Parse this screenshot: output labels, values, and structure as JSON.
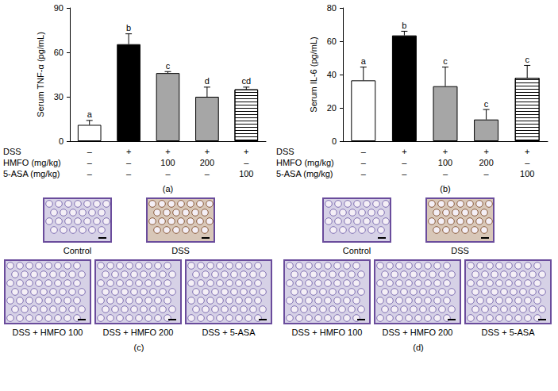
{
  "chart_data": [
    {
      "type": "bar",
      "panel_label": "(a)",
      "y_label": "Serum TNF-α (pg/mL)",
      "x_table": [
        {
          "label": "DSS",
          "cells": [
            "–",
            "+",
            "+",
            "+",
            "+"
          ]
        },
        {
          "label": "HMFO (mg/kg)",
          "cells": [
            "–",
            "–",
            "100",
            "200",
            "–"
          ]
        },
        {
          "label": "5-ASA (mg/kg)",
          "cells": [
            "–",
            "–",
            "–",
            "–",
            "100"
          ]
        }
      ],
      "values": [
        11,
        65.5,
        46,
        30,
        35
      ],
      "errors": [
        3,
        7,
        1,
        6.5,
        1.5
      ],
      "letters": [
        "a",
        "b",
        "c",
        "d",
        "cd"
      ],
      "colors": [
        "#ffffff",
        "#000000",
        "#a6a6a6",
        "#a6a6a6",
        "#ffffff"
      ],
      "ylim": [
        0,
        90
      ],
      "yticks": [
        0,
        30,
        60,
        90
      ],
      "grid": false
    },
    {
      "type": "bar",
      "panel_label": "(b)",
      "y_label": "Serum IL-6 (pg/mL)",
      "x_table": [
        {
          "label": "DSS",
          "cells": [
            "–",
            "+",
            "+",
            "+",
            "+"
          ]
        },
        {
          "label": "HMFO (mg/kg)",
          "cells": [
            "–",
            "–",
            "100",
            "200",
            "–"
          ]
        },
        {
          "label": "5-ASA (mg/kg)",
          "cells": [
            "–",
            "–",
            "–",
            "–",
            "100"
          ]
        }
      ],
      "values": [
        36.5,
        63.5,
        33,
        13,
        38
      ],
      "errors": [
        8,
        2.5,
        11.5,
        6,
        7.5
      ],
      "letters": [
        "a",
        "b",
        "c",
        "c",
        "c"
      ],
      "colors": [
        "#ffffff",
        "#000000",
        "#a6a6a6",
        "#a6a6a6",
        "#ffffff"
      ],
      "ylim": [
        0,
        80
      ],
      "yticks": [
        0,
        20,
        40,
        60,
        80
      ],
      "grid": false
    }
  ],
  "image_panels": [
    {
      "label": "(c)",
      "images": [
        "Control",
        "DSS",
        "DSS + HMFO 100",
        "DSS + HMFO 200",
        "DSS + 5-ASA"
      ]
    },
    {
      "label": "(d)",
      "images": [
        "Control",
        "DSS",
        "DSS + HMFO 100",
        "DSS + HMFO 200",
        "DSS + 5-ASA"
      ]
    }
  ]
}
